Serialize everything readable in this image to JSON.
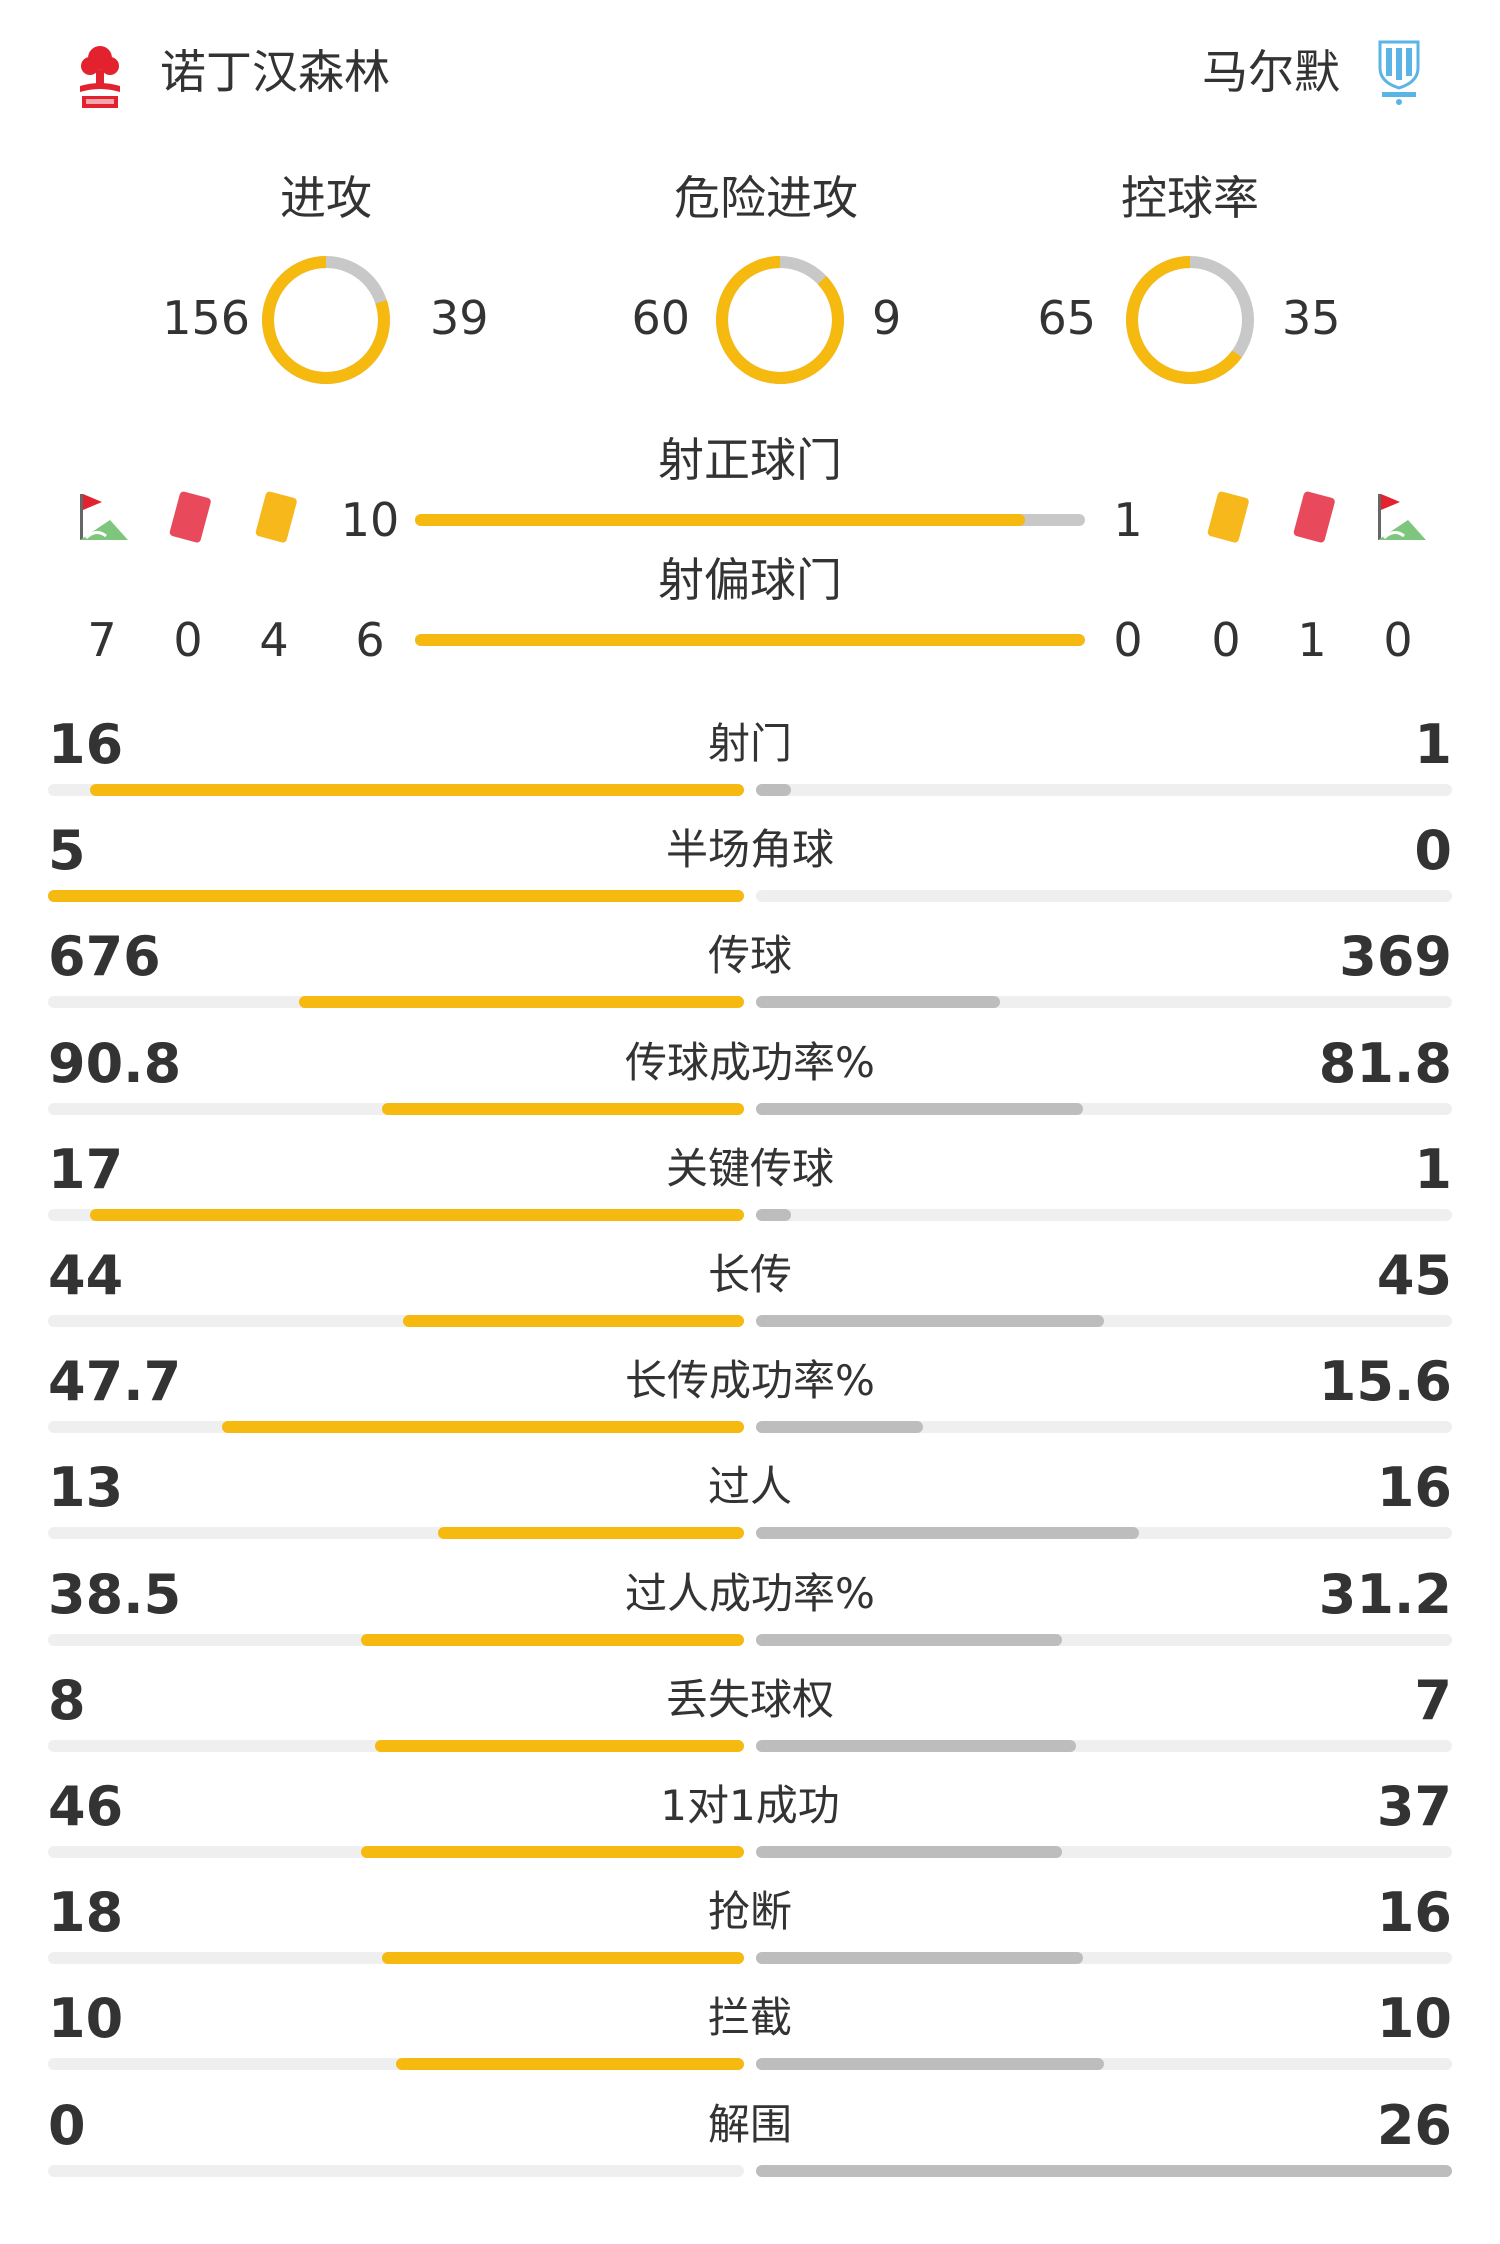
{
  "home": {
    "name": "诺丁汉森林",
    "color": "#e2232f"
  },
  "away": {
    "name": "马尔默",
    "color": "#5ab4e5"
  },
  "colors": {
    "home_bar": "#f5b90f",
    "away_bar": "#bdbdbd",
    "track": "#efefef"
  },
  "donuts": [
    {
      "title": "进攻",
      "home": "156",
      "away": "39",
      "home_share": 0.8
    },
    {
      "title": "危险进攻",
      "home": "60",
      "away": "9",
      "home_share": 0.87
    },
    {
      "title": "控球率",
      "home": "65",
      "away": "35",
      "home_share": 0.65
    }
  ],
  "shots_on": {
    "title": "射正球门",
    "home": "10",
    "away": "1",
    "home_share": 0.91
  },
  "shots_off": {
    "title": "射偏球门",
    "home": "6",
    "away": "0",
    "home_share": 1.0
  },
  "counts": {
    "home": {
      "corners": "7",
      "red": "0",
      "yellow": "4"
    },
    "away": {
      "yellow": "0",
      "red": "1",
      "corners": "0"
    }
  },
  "icons": [
    "corner-flag-icon",
    "red-card-icon",
    "yellow-card-icon"
  ],
  "stats": [
    {
      "label": "射门",
      "home": "16",
      "away": "1",
      "home_frac": 0.94,
      "away_frac": 0.05
    },
    {
      "label": "半场角球",
      "home": "5",
      "away": "0",
      "home_frac": 1.0,
      "away_frac": 0.0
    },
    {
      "label": "传球",
      "home": "676",
      "away": "369",
      "home_frac": 0.64,
      "away_frac": 0.35
    },
    {
      "label": "传球成功率%",
      "home": "90.8",
      "away": "81.8",
      "home_frac": 0.52,
      "away_frac": 0.47
    },
    {
      "label": "关键传球",
      "home": "17",
      "away": "1",
      "home_frac": 0.94,
      "away_frac": 0.05
    },
    {
      "label": "长传",
      "home": "44",
      "away": "45",
      "home_frac": 0.49,
      "away_frac": 0.5
    },
    {
      "label": "长传成功率%",
      "home": "47.7",
      "away": "15.6",
      "home_frac": 0.75,
      "away_frac": 0.24
    },
    {
      "label": "过人",
      "home": "13",
      "away": "16",
      "home_frac": 0.44,
      "away_frac": 0.55
    },
    {
      "label": "过人成功率%",
      "home": "38.5",
      "away": "31.2",
      "home_frac": 0.55,
      "away_frac": 0.44
    },
    {
      "label": "丢失球权",
      "home": "8",
      "away": "7",
      "home_frac": 0.53,
      "away_frac": 0.46
    },
    {
      "label": "1对1成功",
      "home": "46",
      "away": "37",
      "home_frac": 0.55,
      "away_frac": 0.44
    },
    {
      "label": "抢断",
      "home": "18",
      "away": "16",
      "home_frac": 0.52,
      "away_frac": 0.47
    },
    {
      "label": "拦截",
      "home": "10",
      "away": "10",
      "home_frac": 0.5,
      "away_frac": 0.5
    },
    {
      "label": "解围",
      "home": "0",
      "away": "26",
      "home_frac": 0.0,
      "away_frac": 1.0
    }
  ]
}
